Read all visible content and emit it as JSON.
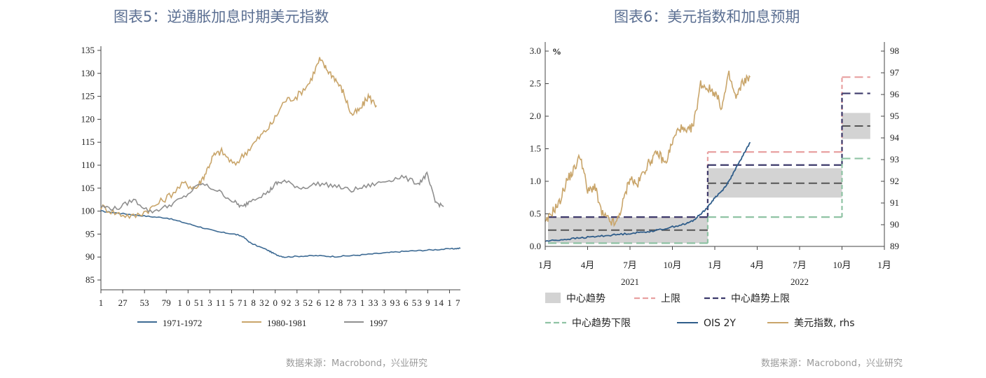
{
  "chart_data": [
    {
      "type": "line",
      "title": "图表5：逆通胀加息时期美元指数",
      "source": "数据来源：Macrobond，兴业研究",
      "xlabel": "",
      "ylabel": "",
      "ylim": [
        85,
        135
      ],
      "yticks": [
        "85",
        "90",
        "95",
        "100",
        "105",
        "110",
        "115",
        "120",
        "125",
        "130",
        "135"
      ],
      "xlim": [
        1,
        430
      ],
      "xticks": [
        "1",
        "27",
        "53",
        "79",
        "105",
        "131",
        "157",
        "183",
        "209",
        "235",
        "261",
        "287",
        "313",
        "339",
        "365",
        "391",
        "417"
      ],
      "grid": false,
      "legend_position": "bottom",
      "series": [
        {
          "name": "1971-1972",
          "color": "#3e6b94",
          "x": [
            1,
            20,
            40,
            60,
            80,
            100,
            120,
            140,
            160,
            170,
            180,
            200,
            210,
            220,
            240,
            260,
            280,
            300,
            320,
            340,
            360,
            380,
            400,
            420,
            430
          ],
          "y": [
            100,
            99.6,
            99.2,
            98.8,
            98.5,
            97.5,
            96.5,
            95.5,
            95,
            94.5,
            93,
            91.5,
            90.5,
            90.0,
            90.2,
            90.3,
            90.1,
            90.3,
            90.6,
            90.9,
            91.2,
            91.4,
            91.6,
            91.8,
            91.9
          ]
        },
        {
          "name": "1980-1981",
          "color": "#c9a56a",
          "x": [
            1,
            20,
            40,
            60,
            80,
            100,
            115,
            125,
            135,
            145,
            160,
            175,
            190,
            205,
            220,
            235,
            250,
            262,
            270,
            280,
            290,
            300,
            310,
            320,
            330
          ],
          "y": [
            101,
            99.5,
            98.8,
            100.5,
            103,
            106,
            105,
            108,
            112,
            113,
            110,
            113,
            116,
            119,
            124,
            125,
            128,
            133,
            131,
            129,
            126,
            121,
            122,
            125,
            123
          ]
        },
        {
          "name": "1997",
          "color": "#8f8f8f",
          "x": [
            1,
            20,
            40,
            60,
            80,
            100,
            120,
            140,
            160,
            170,
            180,
            200,
            210,
            220,
            240,
            260,
            280,
            300,
            320,
            340,
            360,
            380,
            390,
            400,
            410
          ],
          "y": [
            101,
            100.5,
            102.5,
            99.8,
            101,
            103,
            106,
            104.5,
            102,
            100.8,
            102.5,
            104,
            106,
            106.5,
            105,
            106,
            105.5,
            104.5,
            105.5,
            106.5,
            107.5,
            106,
            108,
            102,
            101
          ]
        }
      ]
    },
    {
      "type": "line",
      "title": "图表6：美元指数和加息预期",
      "source": "数据来源：Macrobond，兴业研究",
      "y_unit_label": "%",
      "ylim_left": [
        0.0,
        3.0
      ],
      "yticks_left": [
        "0.0",
        "0.5",
        "1.0",
        "1.5",
        "2.0",
        "2.5",
        "3.0"
      ],
      "ylim_right": [
        89,
        98
      ],
      "yticks_right": [
        "89",
        "90",
        "91",
        "92",
        "93",
        "94",
        "95",
        "96",
        "97",
        "98"
      ],
      "x_unit": "months since 2021-01",
      "xlim": [
        0,
        24
      ],
      "xticks": [
        "1月",
        "4月",
        "7月",
        "10月",
        "1月",
        "4月",
        "7月",
        "10月",
        "1月"
      ],
      "year_labels": [
        "2021",
        "2022"
      ],
      "grid": false,
      "legend_position": "bottom",
      "legend": [
        "中心趋势",
        "上限",
        "中心趋势上限",
        "中心趋势下限",
        "OIS 2Y",
        "美元指数, rhs"
      ],
      "bands": [
        {
          "name": "中心趋势",
          "color": "#d3d3d3",
          "periods": [
            {
              "x0": 0.2,
              "x1": 11.5,
              "y0": 0.05,
              "y1": 0.45
            },
            {
              "x0": 11.5,
              "x1": 21.0,
              "y0": 0.75,
              "y1": 1.2
            },
            {
              "x0": 21.0,
              "x1": 23.0,
              "y0": 1.65,
              "y1": 2.05
            }
          ]
        }
      ],
      "steps": [
        {
          "name": "上限",
          "color": "#e8a1a1",
          "levels": [
            {
              "x0": 0.2,
              "x1": 11.5,
              "y": 0.45
            },
            {
              "x0": 11.5,
              "x1": 21.0,
              "y": 1.45
            },
            {
              "x0": 21.0,
              "x1": 23.0,
              "y": 2.6
            }
          ]
        },
        {
          "name": "中心趋势上限",
          "color": "#3c3a6b",
          "levels": [
            {
              "x0": 0.2,
              "x1": 11.5,
              "y": 0.45
            },
            {
              "x0": 11.5,
              "x1": 21.0,
              "y": 1.25
            },
            {
              "x0": 21.0,
              "x1": 23.0,
              "y": 2.35
            }
          ]
        },
        {
          "name": "中心趋势下限",
          "color": "#8fc3a4",
          "levels": [
            {
              "x0": 0.2,
              "x1": 11.5,
              "y": 0.05
            },
            {
              "x0": 11.5,
              "x1": 21.0,
              "y": 0.45
            },
            {
              "x0": 21.0,
              "x1": 23.0,
              "y": 1.35
            }
          ]
        }
      ],
      "mid_lines": [
        {
          "x0": 0.2,
          "x1": 11.5,
          "y": 0.25
        },
        {
          "x0": 11.5,
          "x1": 21.0,
          "y": 0.97
        },
        {
          "x0": 21.0,
          "x1": 23.0,
          "y": 1.85
        }
      ],
      "series": [
        {
          "name": "OIS 2Y",
          "axis": "left",
          "color": "#2f5d8a",
          "x": [
            0,
            1,
            2,
            3,
            4,
            5,
            6,
            7,
            8,
            9,
            10,
            10.5,
            11,
            11.5,
            12,
            12.5,
            13,
            13.5,
            14,
            14.5
          ],
          "y": [
            0.08,
            0.1,
            0.12,
            0.14,
            0.16,
            0.18,
            0.2,
            0.22,
            0.25,
            0.3,
            0.35,
            0.4,
            0.5,
            0.6,
            0.75,
            0.85,
            1.0,
            1.2,
            1.4,
            1.6
          ]
        },
        {
          "name": "美元指数, rhs",
          "axis": "right",
          "color": "#c9a56a",
          "x": [
            0,
            0.5,
            1,
            1.5,
            2,
            2.5,
            3,
            3.5,
            4,
            4.5,
            5,
            5.5,
            6,
            6.5,
            7,
            7.5,
            8,
            8.5,
            9,
            9.5,
            10,
            10.5,
            11,
            11.5,
            12,
            12.5,
            13,
            13.5,
            14,
            14.5
          ],
          "y": [
            90,
            90.6,
            91,
            92,
            92.5,
            93.2,
            91.5,
            91.8,
            90.5,
            90.2,
            90,
            91,
            92.2,
            91.8,
            92.5,
            93,
            93.3,
            92.8,
            93.8,
            94.5,
            94.2,
            94.6,
            96.5,
            96.3,
            96.1,
            95.4,
            96.9,
            95.8,
            96.6,
            96.8
          ]
        }
      ]
    }
  ]
}
